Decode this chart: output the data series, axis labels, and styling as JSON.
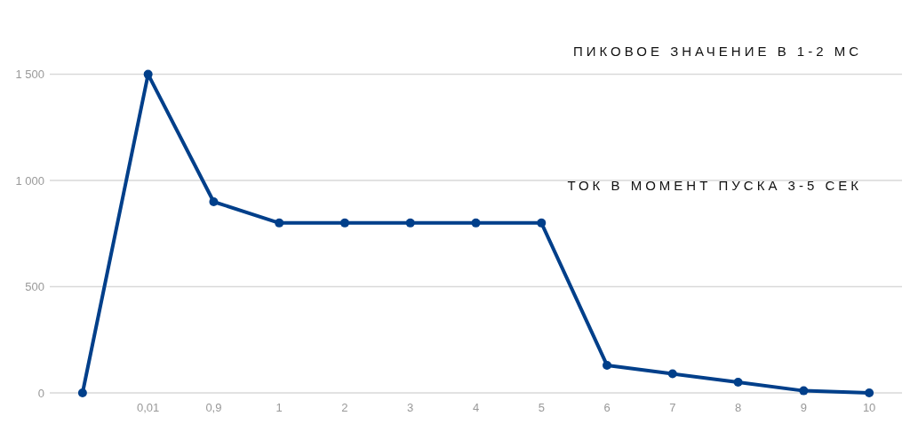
{
  "chart_data": {
    "type": "line",
    "categories": [
      null,
      "0,01",
      "0,9",
      "1",
      "2",
      "3",
      "4",
      "5",
      "6",
      "7",
      "8",
      "9",
      "10"
    ],
    "series": [
      {
        "color": "#003f8a",
        "values": [
          0,
          1500,
          900,
          800,
          800,
          800,
          800,
          800,
          130,
          90,
          50,
          10,
          0
        ]
      }
    ],
    "ylim": [
      0,
      1850
    ],
    "yticks": [
      0,
      500,
      {
        "value": 1000,
        "label": "1 000"
      },
      {
        "value": 1500,
        "label": "1 500"
      }
    ],
    "grid": "y",
    "marker": "circle",
    "line_style": "solid",
    "annotations": [
      "ПИКОВОЕ ЗНАЧЕНИЕ В 1-2 МС",
      "ТОК В МОМЕНТ ПУСКА 3-5 СЕК"
    ]
  }
}
